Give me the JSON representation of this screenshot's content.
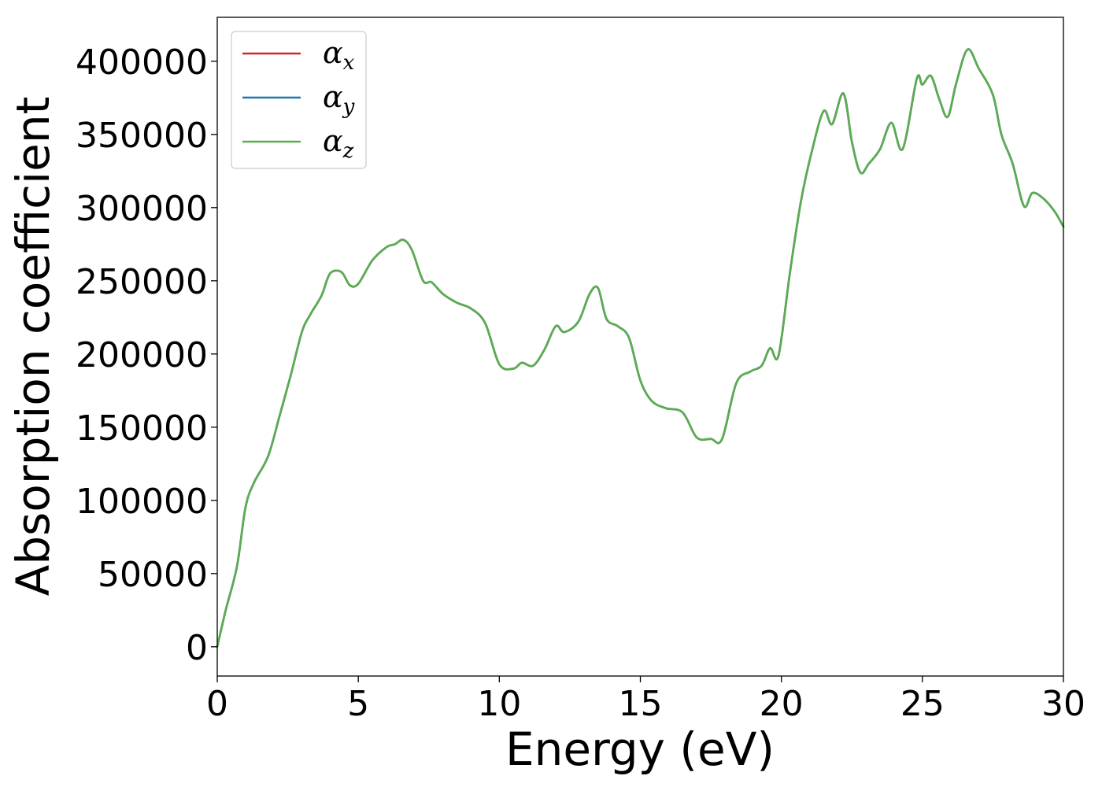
{
  "chart_data": {
    "type": "line",
    "xlabel": "Energy (eV)",
    "ylabel": "Absorption coefficient",
    "xlim": [
      0,
      30
    ],
    "ylim": [
      -20000,
      430000
    ],
    "xticks": [
      "0",
      "5",
      "10",
      "15",
      "20",
      "25",
      "30"
    ],
    "yticks": [
      "0",
      "50000",
      "100000",
      "150000",
      "200000",
      "250000",
      "300000",
      "350000",
      "400000"
    ],
    "grid": false,
    "legend_position": "top-left",
    "x": [
      0,
      0.3,
      0.7,
      1.0,
      1.3,
      1.8,
      2.2,
      2.6,
      3.0,
      3.3,
      3.7,
      4.0,
      4.4,
      4.7,
      5.0,
      5.5,
      6.0,
      6.3,
      6.6,
      6.9,
      7.3,
      7.6,
      8.0,
      8.5,
      9.0,
      9.5,
      10.0,
      10.5,
      10.8,
      11.2,
      11.6,
      12.0,
      12.3,
      12.8,
      13.2,
      13.5,
      13.8,
      14.2,
      14.6,
      15.0,
      15.4,
      15.9,
      16.5,
      17.0,
      17.5,
      17.9,
      18.4,
      18.9,
      19.3,
      19.6,
      19.9,
      20.3,
      20.7,
      21.1,
      21.5,
      21.8,
      22.2,
      22.5,
      22.8,
      23.1,
      23.5,
      23.9,
      24.3,
      24.8,
      25.0,
      25.3,
      25.6,
      25.9,
      26.2,
      26.6,
      27.0,
      27.5,
      27.8,
      28.2,
      28.6,
      28.9,
      29.3,
      29.7,
      30.0
    ],
    "series": [
      {
        "name": "α_x",
        "color": "#d62728",
        "values": [
          0,
          25000,
          55000,
          95000,
          112000,
          130000,
          157000,
          185000,
          215000,
          227000,
          240000,
          255000,
          256000,
          247000,
          248000,
          264000,
          273000,
          275000,
          278000,
          271000,
          250000,
          249000,
          241000,
          235000,
          231000,
          221000,
          193000,
          190000,
          194000,
          192000,
          203000,
          219000,
          215000,
          222000,
          241000,
          245000,
          224000,
          219000,
          211000,
          182000,
          168000,
          163000,
          160000,
          143000,
          142000,
          142000,
          180000,
          188000,
          192000,
          204000,
          199000,
          255000,
          305000,
          340000,
          366000,
          357000,
          378000,
          345000,
          324000,
          330000,
          340000,
          358000,
          340000,
          388000,
          384000,
          390000,
          374000,
          362000,
          385000,
          408000,
          395000,
          377000,
          350000,
          330000,
          301000,
          310000,
          306000,
          297000,
          287000
        ]
      },
      {
        "name": "α_y",
        "color": "#1f77b4",
        "values": [
          0,
          25000,
          55000,
          95000,
          112000,
          130000,
          157000,
          185000,
          215000,
          227000,
          240000,
          255000,
          256000,
          247000,
          248000,
          264000,
          273000,
          275000,
          278000,
          271000,
          250000,
          249000,
          241000,
          235000,
          231000,
          221000,
          193000,
          190000,
          194000,
          192000,
          203000,
          219000,
          215000,
          222000,
          241000,
          245000,
          224000,
          219000,
          211000,
          182000,
          168000,
          163000,
          160000,
          143000,
          142000,
          142000,
          180000,
          188000,
          192000,
          204000,
          199000,
          255000,
          305000,
          340000,
          366000,
          357000,
          378000,
          345000,
          324000,
          330000,
          340000,
          358000,
          340000,
          388000,
          384000,
          390000,
          374000,
          362000,
          385000,
          408000,
          395000,
          377000,
          350000,
          330000,
          301000,
          310000,
          306000,
          297000,
          287000
        ]
      },
      {
        "name": "α_z",
        "color": "#5aae4f",
        "values": [
          0,
          25000,
          55000,
          95000,
          112000,
          130000,
          157000,
          185000,
          215000,
          227000,
          240000,
          255000,
          256000,
          247000,
          248000,
          264000,
          273000,
          275000,
          278000,
          271000,
          250000,
          249000,
          241000,
          235000,
          231000,
          221000,
          193000,
          190000,
          194000,
          192000,
          203000,
          219000,
          215000,
          222000,
          241000,
          245000,
          224000,
          219000,
          211000,
          182000,
          168000,
          163000,
          160000,
          143000,
          142000,
          142000,
          180000,
          188000,
          192000,
          204000,
          199000,
          255000,
          305000,
          340000,
          366000,
          357000,
          378000,
          345000,
          324000,
          330000,
          340000,
          358000,
          340000,
          388000,
          384000,
          390000,
          374000,
          362000,
          385000,
          408000,
          395000,
          377000,
          350000,
          330000,
          301000,
          310000,
          306000,
          297000,
          287000
        ]
      }
    ],
    "legend": [
      {
        "symbol": "α",
        "sub": "x"
      },
      {
        "symbol": "α",
        "sub": "y"
      },
      {
        "symbol": "α",
        "sub": "z"
      }
    ]
  }
}
